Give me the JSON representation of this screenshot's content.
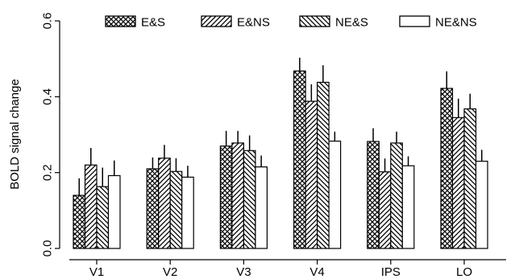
{
  "chart_data": {
    "type": "bar",
    "title": "",
    "xlabel": "",
    "ylabel": "BOLD signal change",
    "ylim": [
      0,
      0.6
    ],
    "yticks": [
      "0.0",
      "0.2",
      "0.4",
      "0.6"
    ],
    "categories": [
      "V1",
      "V2",
      "V3",
      "V4",
      "IPS",
      "LO"
    ],
    "error_bars": "one-sided (upward)",
    "grid": false,
    "legend_position": "top",
    "series": [
      {
        "name": "E&S",
        "pattern": "crosshatch",
        "values": [
          0.14,
          0.21,
          0.27,
          0.468,
          0.282,
          0.422
        ],
        "errors": [
          0.045,
          0.03,
          0.04,
          0.035,
          0.035,
          0.045
        ]
      },
      {
        "name": "E&NS",
        "pattern": "diagonal-up",
        "values": [
          0.22,
          0.238,
          0.278,
          0.388,
          0.202,
          0.345
        ],
        "errors": [
          0.045,
          0.035,
          0.032,
          0.045,
          0.035,
          0.05
        ]
      },
      {
        "name": "NE&S",
        "pattern": "diagonal-down",
        "values": [
          0.163,
          0.203,
          0.258,
          0.438,
          0.278,
          0.368
        ],
        "errors": [
          0.05,
          0.035,
          0.04,
          0.045,
          0.03,
          0.04
        ]
      },
      {
        "name": "NE&NS",
        "pattern": "none",
        "values": [
          0.192,
          0.188,
          0.215,
          0.283,
          0.218,
          0.23
        ],
        "errors": [
          0.04,
          0.03,
          0.03,
          0.025,
          0.025,
          0.03
        ]
      }
    ]
  }
}
